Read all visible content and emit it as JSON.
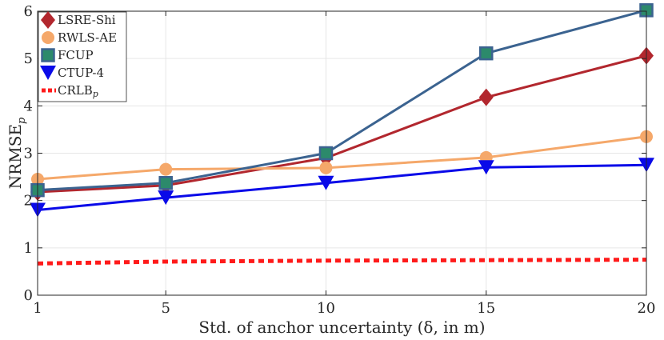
{
  "chart_data": {
    "type": "line",
    "xlabel": "Std. of anchor uncertainty (δ, in m)",
    "ylabel": "NRMSE",
    "ylabel_sub": "p",
    "x": [
      1,
      5,
      10,
      15,
      20
    ],
    "xlim": [
      1,
      20
    ],
    "ylim": [
      0,
      6
    ],
    "xticks": [
      "1",
      "5",
      "10",
      "15",
      "20"
    ],
    "yticks": [
      "0",
      "1",
      "2",
      "3",
      "4",
      "5",
      "6"
    ],
    "grid": true,
    "legend_position": "top-left",
    "series": [
      {
        "name": "LSRE-Shi",
        "sub": "",
        "values": [
          2.18,
          2.32,
          2.9,
          4.18,
          5.06
        ],
        "color": "#b2272e",
        "marker": "diamond",
        "dashed": false
      },
      {
        "name": "RWLS-AE",
        "sub": "",
        "values": [
          2.45,
          2.66,
          2.69,
          2.91,
          3.35
        ],
        "color": "#f5a86a",
        "marker": "circle",
        "dashed": false
      },
      {
        "name": "FCUP",
        "sub": "",
        "values": [
          2.22,
          2.37,
          3.0,
          5.11,
          6.02
        ],
        "color": "#3b6390",
        "marker": "square",
        "dashed": false
      },
      {
        "name": "CTUP-4",
        "sub": "",
        "values": [
          1.8,
          2.06,
          2.37,
          2.7,
          2.75
        ],
        "color": "#0a0ae8",
        "marker": "triangle-down",
        "dashed": false
      },
      {
        "name": "CRLB",
        "sub": "p",
        "values": [
          0.67,
          0.71,
          0.73,
          0.74,
          0.75
        ],
        "color": "#ff1a1a",
        "marker": "none",
        "dashed": true
      }
    ]
  }
}
